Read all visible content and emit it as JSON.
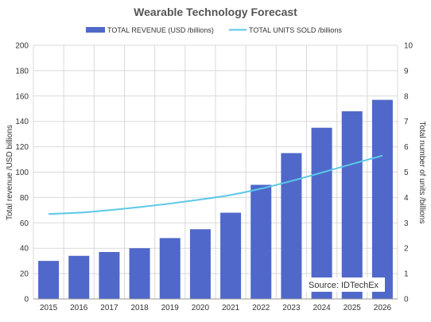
{
  "chart_data": {
    "type": "bar",
    "title": "Wearable Technology Forecast",
    "categories": [
      "2015",
      "2016",
      "2017",
      "2018",
      "2019",
      "2020",
      "2021",
      "2022",
      "2023",
      "2024",
      "2025",
      "2026"
    ],
    "series": [
      {
        "name": "TOTAL REVENUE (USD /billions)",
        "type": "bar",
        "axis": "left",
        "color": "#4f68c9",
        "values": [
          30,
          34,
          37,
          40,
          48,
          55,
          68,
          90,
          115,
          135,
          148,
          157
        ]
      },
      {
        "name": "TOTAL UNITS SOLD /billions",
        "type": "line",
        "axis": "right",
        "color": "#5bc8e8",
        "values": [
          3.35,
          3.4,
          3.5,
          3.62,
          3.76,
          3.92,
          4.1,
          4.35,
          4.65,
          4.98,
          5.32,
          5.65
        ]
      }
    ],
    "y_left": {
      "label": "Total revenue /USD billions",
      "ylim": [
        0,
        200
      ],
      "ticks": [
        "0",
        "20",
        "40",
        "60",
        "80",
        "100",
        "120",
        "140",
        "160",
        "180",
        "200"
      ]
    },
    "y_right": {
      "label": "Total number  of units /billions",
      "ylim": [
        0,
        10
      ],
      "ticks": [
        "0",
        "1",
        "2",
        "3",
        "4",
        "5",
        "6",
        "7",
        "8",
        "9",
        "10"
      ]
    },
    "grid": true,
    "legend_position": "top-center",
    "source_note": "Source:  IDTechEx"
  }
}
